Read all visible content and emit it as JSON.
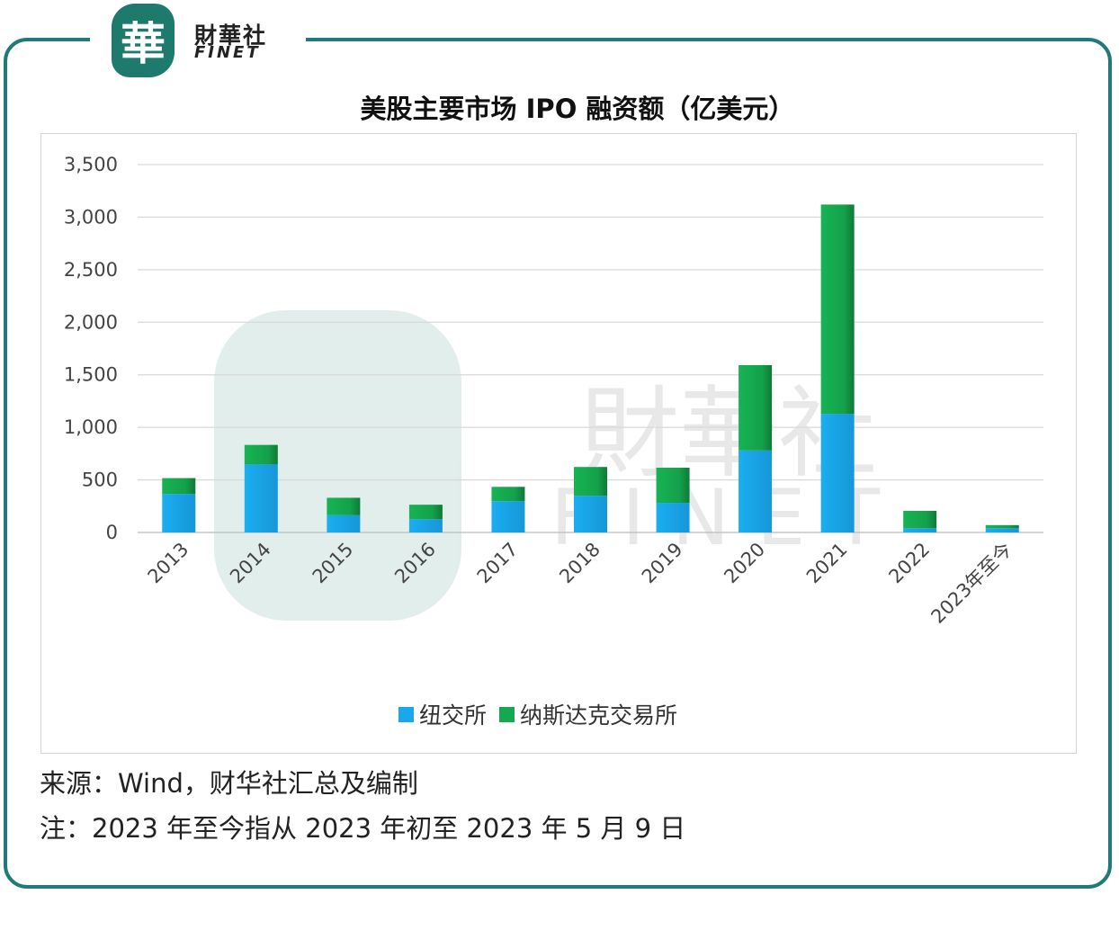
{
  "logo": {
    "mark": "華",
    "cn": "財華社",
    "en": "FINET"
  },
  "chart_data": {
    "type": "bar",
    "stacked": true,
    "title": "美股主要市场 IPO 融资额（亿美元）",
    "categories": [
      "2013",
      "2014",
      "2015",
      "2016",
      "2017",
      "2018",
      "2019",
      "2020",
      "2021",
      "2022",
      "2023年至今"
    ],
    "series": [
      {
        "name": "纽交所",
        "color": "#19a9ea",
        "values": [
          367,
          647,
          164,
          126,
          298,
          350,
          282,
          780,
          1129,
          40,
          40
        ]
      },
      {
        "name": "纳斯达克交易所",
        "color": "#16a84e",
        "values": [
          150,
          186,
          166,
          138,
          136,
          273,
          334,
          812,
          1991,
          166,
          30
        ]
      }
    ],
    "ylim": [
      0,
      3500
    ],
    "yticks": [
      "0",
      "500",
      "1,000",
      "1,500",
      "2,000",
      "2,500",
      "3,000",
      "3,500"
    ],
    "grid": true,
    "legend": "bottom"
  },
  "watermark": {
    "cn": "財華社",
    "en": "FINET"
  },
  "footer": {
    "source": "来源：Wind，财华社汇总及编制",
    "note": "注：2023 年至今指从 2023 年初至 2023 年 5 月 9 日"
  }
}
